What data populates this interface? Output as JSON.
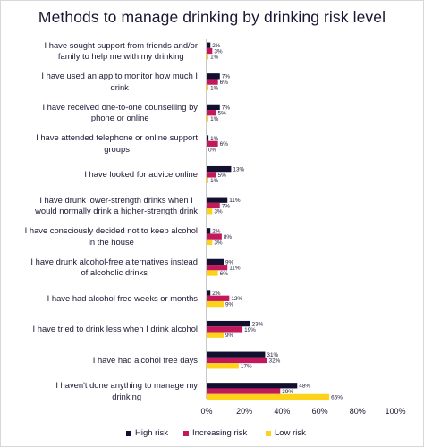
{
  "chart_data": {
    "type": "bar",
    "orientation": "horizontal",
    "title": "Methods to manage drinking by drinking risk level",
    "categories": [
      [
        "I have sought support from friends and/or",
        "family to help me with my drinking"
      ],
      [
        "I have used an app to monitor how much I",
        "drink"
      ],
      [
        "I have received one-to-one counselling by",
        "phone or online"
      ],
      [
        "I have attended telephone or online support",
        "groups"
      ],
      [
        "I have looked for advice online"
      ],
      [
        "I have drunk lower-strength drinks when I",
        "would normally drink a higher-strength drink"
      ],
      [
        "I have consciously decided not to keep alcohol",
        "in the house"
      ],
      [
        "I have drunk alcohol-free alternatives instead",
        "of alcoholic drinks"
      ],
      [
        "I have had alcohol free weeks or months"
      ],
      [
        "I have tried to drink less when I drink alcohol"
      ],
      [
        "I have had alcohol free days"
      ],
      [
        "I haven't done anything to manage my",
        "drinking"
      ]
    ],
    "series": [
      {
        "name": "High risk",
        "color": "#12102e",
        "values": [
          2,
          7,
          7,
          1,
          13,
          11,
          2,
          9,
          2,
          23,
          31,
          48
        ]
      },
      {
        "name": "Increasing risk",
        "color": "#c4185c",
        "values": [
          3,
          6,
          5,
          6,
          5,
          7,
          8,
          11,
          12,
          19,
          32,
          39
        ]
      },
      {
        "name": "Low risk",
        "color": "#ffd21a",
        "values": [
          1,
          1,
          1,
          0,
          1,
          3,
          3,
          6,
          9,
          9,
          17,
          65
        ]
      }
    ],
    "xlim": [
      0,
      100
    ],
    "xticks": [
      "0%",
      "20%",
      "40%",
      "60%",
      "80%",
      "100%"
    ],
    "value_suffix": "%",
    "legend_position": "bottom"
  }
}
